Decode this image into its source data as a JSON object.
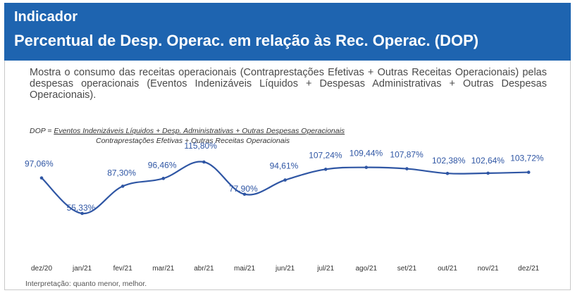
{
  "header": {
    "kicker": "Indicador",
    "title": "Percentual de Desp. Operac. em relação às Rec. Operac. (DOP)"
  },
  "description": "Mostra o consumo das receitas operacionais (Contraprestações Efetivas + Outras Receitas Operacionais) pelas despesas operacionais (Eventos Indenizáveis Líquidos + Despesas Administrativas + Outras Despesas Operacionais).",
  "formula": {
    "prefix": "DOP = ",
    "numerator": "Eventos Indenizáveis Líquidos + Desp. Administrativas + Outras Despesas Operacionais",
    "denominator": "Contraprestações Efetivas + Outras Receitas Operacionais"
  },
  "note": "Interpretação: quanto menor, melhor.",
  "colors": {
    "header": "#1e64b0",
    "line": "#2f56a4"
  },
  "chart_data": {
    "type": "line",
    "categories": [
      "dez/20",
      "jan/21",
      "fev/21",
      "mar/21",
      "abr/21",
      "mai/21",
      "jun/21",
      "jul/21",
      "ago/21",
      "set/21",
      "out/21",
      "nov/21",
      "dez/21"
    ],
    "values": [
      97.06,
      55.33,
      87.3,
      96.46,
      115.8,
      77.9,
      94.61,
      107.24,
      109.44,
      107.87,
      102.38,
      102.64,
      103.72
    ],
    "value_labels": [
      "97,06%",
      "55,33%",
      "87,30%",
      "96,46%",
      "115,80%",
      "77,90%",
      "94,61%",
      "107,24%",
      "109,44%",
      "107,87%",
      "102,38%",
      "102,64%",
      "103,72%"
    ],
    "title": "",
    "xlabel": "",
    "ylabel": "",
    "grid": false
  }
}
